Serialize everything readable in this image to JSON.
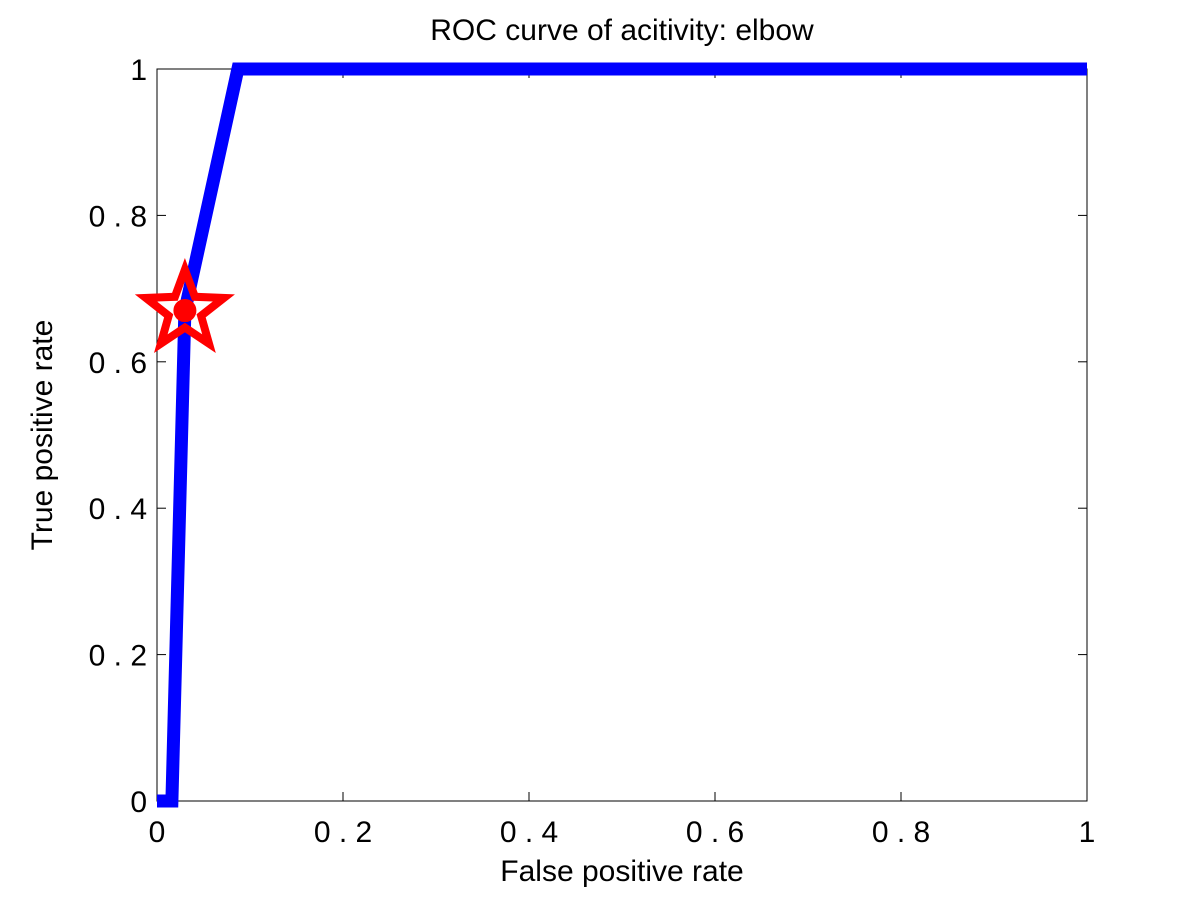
{
  "chart_data": {
    "type": "line",
    "title": "ROC curve of acitivity: elbow",
    "xlabel": "False positive rate",
    "ylabel": "True positive rate",
    "xlim": [
      0,
      1
    ],
    "ylim": [
      0,
      1
    ],
    "grid": false,
    "xticks": [
      0,
      0.2,
      0.4,
      0.6,
      0.8,
      1
    ],
    "xtick_labels": [
      "0",
      "0 . 2",
      "0 . 4",
      "0 . 6",
      "0 . 8",
      "1"
    ],
    "yticks": [
      0,
      0.2,
      0.4,
      0.6,
      0.8,
      1
    ],
    "ytick_labels": [
      "0",
      "0 . 2",
      "0 . 4",
      "0 . 6",
      "0 . 8",
      "1"
    ],
    "series": [
      {
        "x": [
          0,
          0.016,
          0.03,
          0.087,
          1
        ],
        "y": [
          0,
          0,
          0.67,
          1,
          1
        ],
        "color": "#0000ff"
      }
    ],
    "markers": [
      {
        "shape": "star",
        "x": 0.03,
        "y": 0.67,
        "color": "#ff0000",
        "filled": false
      },
      {
        "shape": "circle",
        "x": 0.03,
        "y": 0.67,
        "color": "#ff0000",
        "filled": true
      }
    ]
  }
}
